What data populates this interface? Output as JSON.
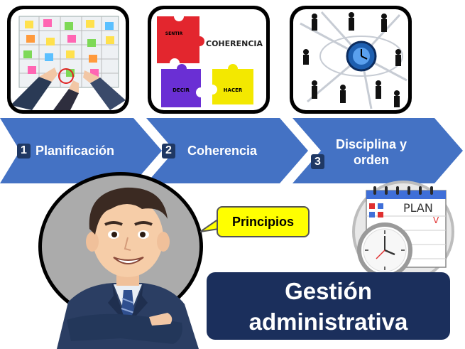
{
  "panels": [
    {
      "name": "planning-board",
      "icon": "sticky-notes-board-icon"
    },
    {
      "name": "puzzle",
      "icon": "puzzle-pieces-icon",
      "word_main": "COHERENCIA",
      "word_vertical": "SENTIR",
      "word_decir": "DECIR",
      "word_hacer": "HACER"
    },
    {
      "name": "time-people",
      "icon": "clock-business-people-icon"
    }
  ],
  "steps": [
    {
      "number": "1",
      "label": "Planificación"
    },
    {
      "number": "2",
      "label": "Coherencia"
    },
    {
      "number": "3",
      "label_line1": "Disciplina y",
      "label_line2": "orden"
    }
  ],
  "bubble": {
    "text": "Principios"
  },
  "calendar": {
    "label": "PLAN",
    "mark": "V"
  },
  "title": {
    "line1": "Gestión",
    "line2": "administrativa"
  },
  "colors": {
    "arrow": "#4472c4",
    "step_number_bg": "#1f3864",
    "title_bg": "#1b2f5c",
    "bubble": "#ffff00"
  }
}
